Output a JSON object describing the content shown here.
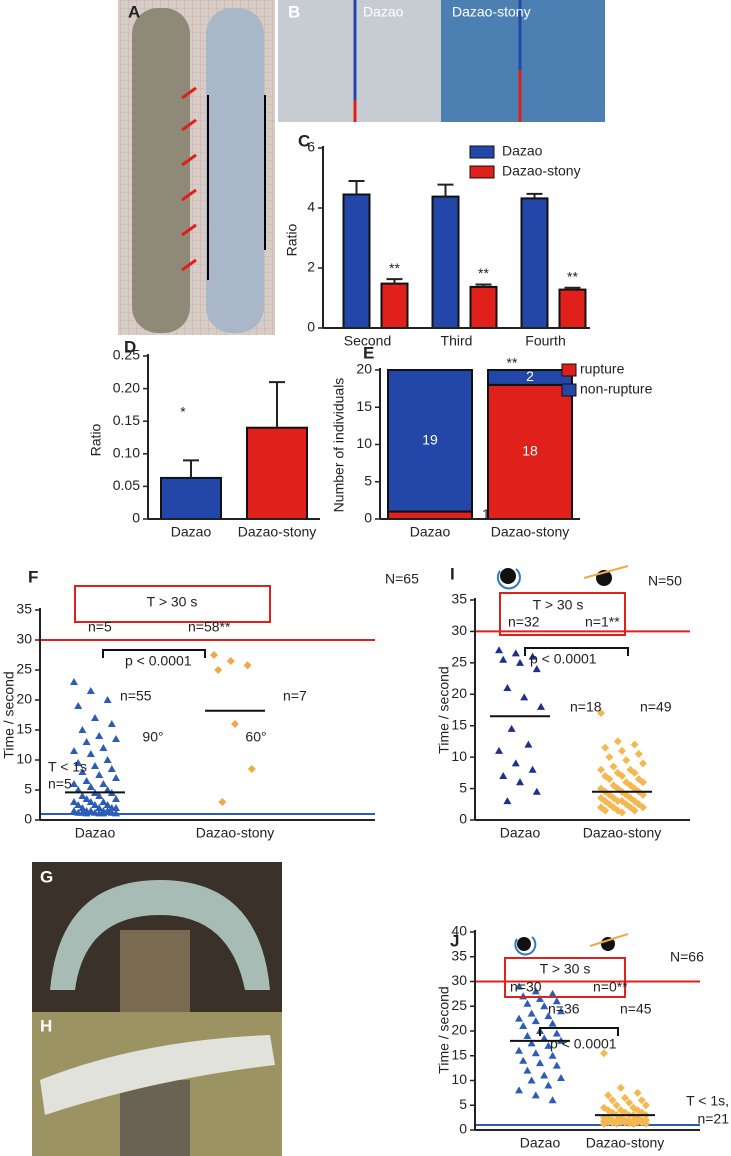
{
  "photos": {
    "A": {
      "panel": "A"
    },
    "B": {
      "panel": "B",
      "labels": [
        "Dazao",
        "Dazao-stony"
      ]
    },
    "G": {
      "panel": "G"
    },
    "H": {
      "panel": "H"
    }
  },
  "chart_data": [
    {
      "type": "bar",
      "panel": "C",
      "y_label": "Ratio",
      "categories": [
        "Second",
        "Third",
        "Fourth"
      ],
      "series": [
        {
          "name": "Dazao",
          "color": "#2347a8",
          "values": [
            4.45,
            4.38,
            4.32
          ],
          "errors": [
            0.45,
            0.4,
            0.15
          ]
        },
        {
          "name": "Dazao-stony",
          "color": "#e0201b",
          "values": [
            1.48,
            1.37,
            1.28
          ],
          "errors": [
            0.15,
            0.08,
            0.06
          ]
        }
      ],
      "ylim": [
        0,
        6
      ],
      "yticks": [
        0,
        2,
        4,
        6
      ],
      "annotations": [
        "**",
        "**",
        "**"
      ]
    },
    {
      "type": "bar",
      "panel": "D",
      "y_label": "Ratio",
      "categories": [
        "Dazao",
        "Dazao-stony"
      ],
      "series": [
        {
          "colors": [
            "#2347a8",
            "#e0201b"
          ],
          "values": [
            0.063,
            0.14
          ],
          "errors": [
            0.027,
            0.07
          ]
        }
      ],
      "ylim": [
        0,
        0.25
      ],
      "yticks": [
        0,
        0.05,
        {
          "value": 0.1,
          "label": "0.10"
        },
        0.15,
        {
          "value": 0.2,
          "label": "0.20"
        },
        0.25
      ],
      "annotations": [
        "*"
      ]
    },
    {
      "type": "stacked",
      "panel": "E",
      "y_label": "Number of individuals",
      "categories": [
        "Dazao",
        "Dazao-stony"
      ],
      "series": [
        {
          "name": "rupture",
          "color": "#e0201b",
          "values": [
            1,
            18
          ]
        },
        {
          "name": "non-rupture",
          "color": "#2347a8",
          "values": [
            19,
            2
          ]
        }
      ],
      "ylim": [
        0,
        20
      ],
      "yticks": [
        0,
        5,
        10,
        15,
        20
      ],
      "annotations": [
        "**"
      ]
    },
    {
      "type": "strip",
      "panel": "F",
      "y_label": "Time / second",
      "categories": [
        "Dazao",
        "Dazao-stony"
      ],
      "groups": [
        {
          "marker": "triangle",
          "color": "#2a5cb8",
          "mean": 4.6,
          "values": [
            23,
            21.5,
            20,
            19,
            17,
            16,
            15,
            14,
            13.5,
            13,
            12,
            11.5,
            11,
            10,
            9.5,
            9,
            8.5,
            8,
            7.5,
            7,
            6.5,
            6,
            6,
            5.5,
            5,
            5,
            4.5,
            4.5,
            4,
            4,
            3.5,
            3.5,
            3,
            3,
            3,
            2.5,
            2.5,
            2.5,
            2,
            2,
            2,
            2,
            1.5,
            1.5,
            1.5,
            1.5,
            1.5,
            1.2,
            1.2,
            1.2,
            1.2,
            1.1,
            1.1,
            1.1,
            1.1
          ]
        },
        {
          "marker": "diamond",
          "color": "#f0a848",
          "mean": 18.2,
          "values": [
            27.5,
            26.5,
            25.8,
            25,
            16,
            8.5,
            3
          ]
        }
      ],
      "thresholds": [
        {
          "value": 30,
          "color": "#e0201b"
        },
        {
          "value": 1,
          "color": "#2a5cb8"
        }
      ],
      "ylim": [
        0,
        35
      ],
      "yticks": [
        0,
        5,
        10,
        15,
        20,
        25,
        30,
        35
      ],
      "annotations": [
        "N=65",
        "T > 30 s",
        "n=5",
        "n=58**",
        "p < 0.0001",
        "n=55",
        "n=7",
        "T < 1s",
        "n=5",
        "90°",
        "60°"
      ]
    },
    {
      "type": "strip",
      "panel": "I",
      "y_label": "Time / second",
      "categories": [
        "Dazao",
        "Dazao-stony"
      ],
      "groups": [
        {
          "marker": "triangle",
          "color": "#1f2f8a",
          "mean": 16.5,
          "values": [
            27,
            26.5,
            26,
            25.5,
            25,
            24,
            21,
            19.5,
            18,
            14.5,
            12,
            11,
            9,
            8,
            7,
            6,
            4.5,
            3
          ]
        },
        {
          "marker": "diamond",
          "color": "#f5b850",
          "mean": 4.5,
          "values": [
            17,
            12.5,
            12,
            11.5,
            11,
            10.5,
            10,
            9.5,
            9,
            8.5,
            8,
            8,
            7.5,
            7.5,
            7,
            7,
            6.5,
            6.5,
            6,
            6,
            5.5,
            5.5,
            5,
            5,
            5,
            4.5,
            4.5,
            4.5,
            4,
            4,
            4,
            3.5,
            3.5,
            3.5,
            3,
            3,
            3,
            3,
            2.5,
            2.5,
            2.5,
            2,
            2,
            2,
            2,
            1.5,
            1.5,
            1.5,
            1.2
          ]
        }
      ],
      "thresholds": [
        {
          "value": 30,
          "color": "#e0201b"
        }
      ],
      "ylim": [
        0,
        35
      ],
      "yticks": [
        0,
        5,
        10,
        15,
        20,
        25,
        30,
        35
      ],
      "annotations": [
        "N=50",
        "T > 30 s",
        "n=32",
        "n=1**",
        "p < 0.0001",
        "n=18",
        "n=49"
      ]
    },
    {
      "type": "strip",
      "panel": "J",
      "y_label": "Time / second",
      "categories": [
        "Dazao",
        "Dazao-stony"
      ],
      "groups": [
        {
          "marker": "triangle",
          "color": "#2a5cb8",
          "mean": 18,
          "values": [
            29,
            28,
            27.5,
            27,
            26.5,
            26,
            25.5,
            25,
            24,
            23.5,
            23,
            22.5,
            22,
            21.5,
            21,
            20,
            19.5,
            19,
            18.5,
            18,
            17.5,
            17,
            16,
            15.5,
            15,
            14,
            13.5,
            13,
            12,
            11,
            10.5,
            10,
            9,
            8,
            7,
            6
          ]
        },
        {
          "marker": "diamond",
          "color": "#f5b850",
          "mean": 3,
          "values": [
            15.5,
            8.5,
            7.5,
            7,
            6.5,
            6,
            6,
            5.5,
            5,
            5,
            4.5,
            4.5,
            4,
            4,
            4,
            3.5,
            3.5,
            3.5,
            3,
            3,
            3,
            3,
            2.5,
            2.5,
            2.5,
            2.5,
            2,
            2,
            2,
            2,
            2,
            1.8,
            1.8,
            1.8,
            1.6,
            1.6,
            1.6,
            1.5,
            1.5,
            1.4,
            1.4,
            1.3,
            1.3,
            1.2,
            1.2
          ]
        }
      ],
      "thresholds": [
        {
          "value": 30,
          "color": "#e0201b"
        },
        {
          "value": 1,
          "color": "#2a5cb8"
        }
      ],
      "ylim": [
        0,
        40
      ],
      "yticks": [
        0,
        5,
        10,
        15,
        20,
        25,
        30,
        35,
        40
      ],
      "annotations": [
        "N=66",
        "T > 30 s",
        "n=30",
        "n=0**",
        "n=36",
        "n=45",
        "p < 0.0001",
        "T < 1s,",
        "n=21"
      ]
    }
  ]
}
